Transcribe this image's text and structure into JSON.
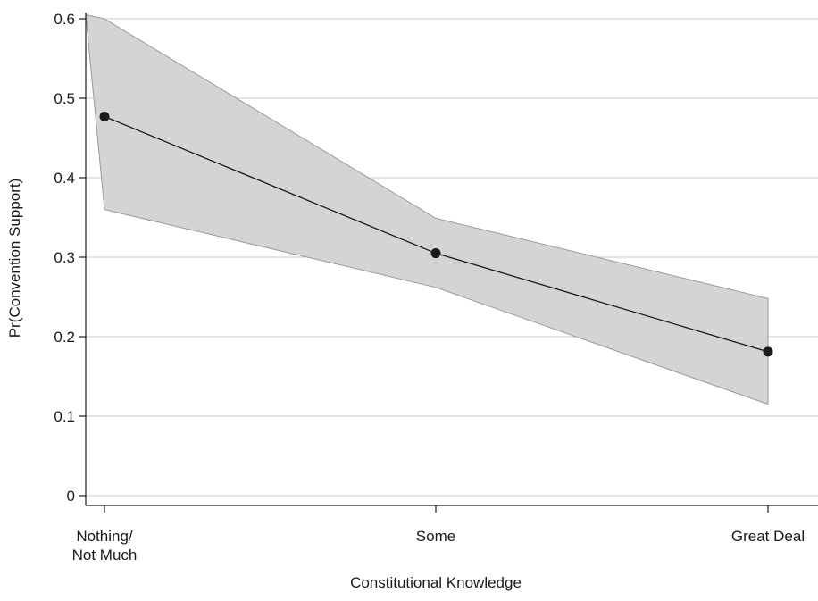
{
  "chart_data": {
    "type": "line",
    "title": "",
    "xlabel": "Constitutional Knowledge",
    "ylabel": "Pr(Convention Support)",
    "categories": [
      [
        "Nothing/",
        "Not Much"
      ],
      [
        "Some"
      ],
      [
        "Great Deal"
      ]
    ],
    "series": [
      {
        "values": [
          0.477,
          0.305,
          0.181
        ],
        "ci_lower": [
          0.36,
          0.262,
          0.115
        ],
        "ci_upper": [
          0.6,
          0.349,
          0.248
        ]
      }
    ],
    "ci_left_edge": 0.605,
    "ylim": [
      0,
      0.6
    ],
    "yticks": [
      "0",
      "0.1",
      "0.2",
      "0.3",
      "0.4",
      "0.5",
      "0.6"
    ],
    "grid": true,
    "colors": {
      "band_fill": "#d3d4d6",
      "band_stroke": "#9a9a9a",
      "line": "#1a1a1a",
      "marker": "#1a1a1a",
      "grid": "#c8c8c8",
      "axis": "#1a1a1a"
    }
  }
}
